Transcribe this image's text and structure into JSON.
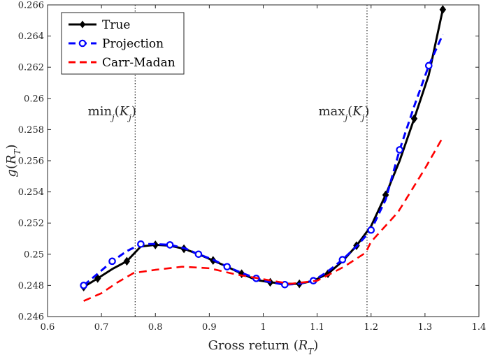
{
  "chart_data": {
    "type": "line",
    "title": "",
    "xlabel": "Gross return (R_T)",
    "ylabel": "g(R_T)",
    "xlim": [
      0.6,
      1.4
    ],
    "ylim": [
      0.246,
      0.266
    ],
    "xticks": [
      0.6,
      0.7,
      0.8,
      0.9,
      1.0,
      1.1,
      1.2,
      1.3,
      1.4
    ],
    "xtick_labels": [
      "0.6",
      "0.7",
      "0.8",
      "0.9",
      "1",
      "1.1",
      "1.2",
      "1.3",
      "1.4"
    ],
    "yticks": [
      0.246,
      0.248,
      0.25,
      0.252,
      0.254,
      0.256,
      0.258,
      0.26,
      0.262,
      0.264,
      0.266
    ],
    "ytick_labels": [
      "0.246",
      "0.248",
      "0.25",
      "0.252",
      "0.254",
      "0.256",
      "0.258",
      "0.26",
      "0.262",
      "0.264",
      "0.266"
    ],
    "grid": false,
    "legend_position": "top-left",
    "vlines": [
      {
        "name": "min-strike-line",
        "x": 0.7625,
        "label": "min_j(K_j)",
        "label_side": "left"
      },
      {
        "name": "max-strike-line",
        "x": 1.1925,
        "label": "max_j(K_j)",
        "label_side": "left"
      }
    ],
    "series": [
      {
        "name": "True",
        "color": "#000000",
        "style": "solid",
        "marker": "diamond",
        "x": [
          0.667,
          0.693,
          0.72,
          0.747,
          0.773,
          0.8,
          0.827,
          0.853,
          0.88,
          0.907,
          0.933,
          0.96,
          0.987,
          1.013,
          1.04,
          1.067,
          1.093,
          1.12,
          1.147,
          1.173,
          1.2,
          1.227,
          1.253,
          1.28,
          1.307,
          1.333
        ],
        "values": [
          0.2479,
          0.24845,
          0.24905,
          0.24955,
          0.2505,
          0.2506,
          0.25055,
          0.25035,
          0.25,
          0.2496,
          0.2492,
          0.24875,
          0.24835,
          0.2482,
          0.2481,
          0.2481,
          0.2483,
          0.24875,
          0.24955,
          0.25055,
          0.2518,
          0.2538,
          0.256,
          0.2587,
          0.2615,
          0.2657
        ],
        "marker_indices": [
          0,
          1,
          3,
          5,
          7,
          9,
          11,
          13,
          15,
          17,
          19,
          21,
          23,
          25
        ]
      },
      {
        "name": "Projection",
        "color": "#0000ff",
        "style": "dashed",
        "marker": "circle",
        "x": [
          0.667,
          0.693,
          0.72,
          0.747,
          0.773,
          0.8,
          0.827,
          0.853,
          0.88,
          0.907,
          0.933,
          0.96,
          0.987,
          1.013,
          1.04,
          1.067,
          1.093,
          1.12,
          1.147,
          1.173,
          1.2,
          1.227,
          1.253,
          1.28,
          1.307,
          1.333
        ],
        "values": [
          0.248,
          0.24875,
          0.24955,
          0.2502,
          0.25065,
          0.25065,
          0.2506,
          0.2504,
          0.25,
          0.24965,
          0.2492,
          0.2488,
          0.24845,
          0.2482,
          0.24805,
          0.2481,
          0.2483,
          0.2489,
          0.24965,
          0.2505,
          0.25155,
          0.2535,
          0.2567,
          0.2595,
          0.2621,
          0.2641
        ],
        "marker_indices": [
          0,
          2,
          4,
          6,
          8,
          10,
          12,
          14,
          16,
          18,
          20,
          22,
          24
        ]
      },
      {
        "name": "Carr-Madan",
        "color": "#ff0000",
        "style": "dashed",
        "marker": "none",
        "x": [
          0.667,
          0.7,
          0.73,
          0.76,
          0.8,
          0.85,
          0.9,
          0.95,
          1.0,
          1.05,
          1.1,
          1.15,
          1.19,
          1.2,
          1.25,
          1.3,
          1.333
        ],
        "values": [
          0.247,
          0.2475,
          0.2482,
          0.2488,
          0.249,
          0.2492,
          0.2491,
          0.2487,
          0.2484,
          0.2481,
          0.2483,
          0.2492,
          0.2501,
          0.2508,
          0.2527,
          0.2555,
          0.2575
        ]
      }
    ]
  }
}
